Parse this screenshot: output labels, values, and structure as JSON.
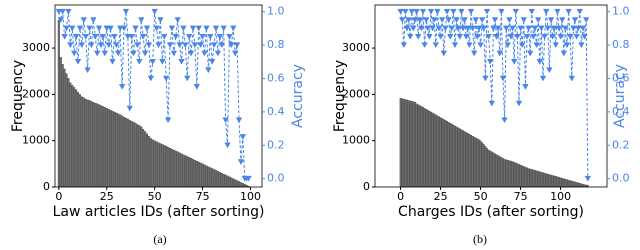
{
  "chart_data": [
    {
      "type": "bar",
      "xlabel": "Law articles IDs (after sorting)",
      "ylabel": "Frequency",
      "y2label": "Accuracy",
      "caption": "(a)",
      "x": [
        0,
        1,
        2,
        3,
        4,
        5,
        6,
        7,
        8,
        9,
        10,
        11,
        12,
        13,
        14,
        15,
        16,
        17,
        18,
        19,
        20,
        21,
        22,
        23,
        24,
        25,
        26,
        27,
        28,
        29,
        30,
        31,
        32,
        33,
        34,
        35,
        36,
        37,
        38,
        39,
        40,
        41,
        42,
        43,
        44,
        45,
        46,
        47,
        48,
        49,
        50,
        51,
        52,
        53,
        54,
        55,
        56,
        57,
        58,
        59,
        60,
        61,
        62,
        63,
        64,
        65,
        66,
        67,
        68,
        69,
        70,
        71,
        72,
        73,
        74,
        75,
        76,
        77,
        78,
        79,
        80,
        81,
        82,
        83,
        84,
        85,
        86,
        87,
        88,
        89,
        90,
        91,
        92,
        93,
        94,
        95,
        96,
        97,
        98,
        99
      ],
      "series": [
        {
          "type": "bar",
          "color": "#6e6e6e",
          "values": [
            3600,
            2800,
            2650,
            2550,
            2450,
            2350,
            2250,
            2200,
            2150,
            2100,
            2050,
            2000,
            1950,
            1930,
            1900,
            1880,
            1870,
            1850,
            1830,
            1810,
            1800,
            1780,
            1760,
            1740,
            1720,
            1700,
            1680,
            1660,
            1640,
            1620,
            1600,
            1580,
            1560,
            1540,
            1510,
            1490,
            1470,
            1440,
            1420,
            1400,
            1380,
            1350,
            1330,
            1300,
            1250,
            1200,
            1150,
            1100,
            1050,
            1020,
            1000,
            980,
            960,
            940,
            920,
            900,
            880,
            860,
            840,
            820,
            800,
            780,
            760,
            740,
            720,
            700,
            680,
            660,
            640,
            620,
            600,
            580,
            560,
            540,
            520,
            500,
            480,
            460,
            440,
            420,
            400,
            380,
            360,
            340,
            320,
            300,
            280,
            260,
            240,
            220,
            200,
            180,
            160,
            140,
            120,
            100,
            80,
            60,
            40,
            20
          ]
        },
        {
          "type": "line",
          "axis": "y2",
          "color": "#4a86e8",
          "values": [
            1.0,
            0.95,
            1.0,
            0.85,
            0.9,
            1.0,
            0.8,
            0.9,
            0.75,
            0.85,
            0.7,
            0.9,
            0.8,
            0.95,
            0.85,
            0.65,
            0.9,
            0.8,
            0.95,
            0.85,
            0.75,
            0.9,
            0.8,
            0.85,
            0.75,
            0.9,
            0.8,
            0.9,
            0.7,
            0.85,
            0.8,
            0.75,
            0.9,
            0.55,
            0.9,
            1.0,
            0.85,
            0.42,
            0.85,
            0.75,
            0.9,
            0.8,
            0.7,
            0.95,
            0.85,
            0.75,
            0.9,
            0.8,
            0.6,
            0.7,
            1.0,
            0.9,
            0.8,
            0.95,
            0.7,
            0.85,
            0.6,
            0.35,
            0.8,
            0.9,
            0.75,
            0.85,
            0.95,
            0.8,
            0.7,
            0.9,
            0.8,
            0.6,
            0.85,
            0.75,
            0.9,
            0.8,
            0.55,
            0.9,
            0.8,
            0.85,
            0.75,
            0.9,
            0.65,
            0.85,
            0.7,
            0.8,
            0.9,
            0.75,
            0.85,
            0.8,
            0.9,
            0.35,
            0.2,
            0.85,
            0.8,
            0.9,
            0.75,
            0.8,
            0.35,
            0.1,
            0.25,
            0.0,
            0.0,
            0.0
          ]
        }
      ],
      "xlim": [
        -2,
        106
      ],
      "xticks": [
        0,
        25,
        50,
        75,
        100
      ],
      "ylim": [
        0,
        3930
      ],
      "yticks": [
        0,
        1000,
        2000,
        3000
      ],
      "y2lim": [
        -0.05,
        1.04
      ],
      "y2ticks": [
        {
          "value": 0,
          "label": "0.0"
        },
        {
          "value": 0.2,
          "label": "0.2"
        },
        {
          "value": 0.4,
          "label": "0.4"
        },
        {
          "value": 0.6,
          "label": "0.6"
        },
        {
          "value": 0.8,
          "label": "0.8"
        },
        {
          "value": 1,
          "label": "1.0"
        }
      ]
    },
    {
      "type": "bar",
      "xlabel": "Charges IDs (after sorting)",
      "ylabel": "Frequency",
      "y2label": "Accuracy",
      "caption": "(b)",
      "x": [
        0,
        1,
        2,
        3,
        4,
        5,
        6,
        7,
        8,
        9,
        10,
        11,
        12,
        13,
        14,
        15,
        16,
        17,
        18,
        19,
        20,
        21,
        22,
        23,
        24,
        25,
        26,
        27,
        28,
        29,
        30,
        31,
        32,
        33,
        34,
        35,
        36,
        37,
        38,
        39,
        40,
        41,
        42,
        43,
        44,
        45,
        46,
        47,
        48,
        49,
        50,
        51,
        52,
        53,
        54,
        55,
        56,
        57,
        58,
        59,
        60,
        61,
        62,
        63,
        64,
        65,
        66,
        67,
        68,
        69,
        70,
        71,
        72,
        73,
        74,
        75,
        76,
        77,
        78,
        79,
        80,
        81,
        82,
        83,
        84,
        85,
        86,
        87,
        88,
        89,
        90,
        91,
        92,
        93,
        94,
        95,
        96,
        97,
        98,
        99,
        100,
        101,
        102,
        103,
        104,
        105,
        106,
        107,
        108,
        109,
        110,
        111,
        112,
        113,
        114,
        115,
        116,
        117
      ],
      "series": [
        {
          "type": "bar",
          "color": "#6e6e6e",
          "values": [
            1920,
            1910,
            1900,
            1890,
            1880,
            1870,
            1860,
            1850,
            1840,
            1830,
            1800,
            1780,
            1760,
            1740,
            1720,
            1700,
            1680,
            1660,
            1640,
            1620,
            1600,
            1580,
            1560,
            1540,
            1520,
            1500,
            1480,
            1460,
            1440,
            1420,
            1400,
            1380,
            1360,
            1340,
            1320,
            1300,
            1280,
            1260,
            1240,
            1220,
            1200,
            1180,
            1160,
            1140,
            1120,
            1100,
            1080,
            1060,
            1040,
            1020,
            1000,
            960,
            920,
            880,
            840,
            800,
            780,
            760,
            740,
            720,
            700,
            680,
            660,
            640,
            620,
            600,
            590,
            580,
            570,
            560,
            550,
            535,
            520,
            505,
            490,
            475,
            460,
            445,
            430,
            415,
            400,
            390,
            380,
            370,
            360,
            350,
            340,
            330,
            320,
            310,
            300,
            290,
            280,
            270,
            260,
            250,
            240,
            230,
            220,
            210,
            200,
            190,
            180,
            170,
            160,
            150,
            140,
            130,
            120,
            110,
            100,
            90,
            80,
            70,
            60,
            50,
            45,
            40
          ]
        },
        {
          "type": "line",
          "axis": "y2",
          "color": "#4a86e8",
          "values": [
            1.0,
            0.95,
            0.8,
            1.0,
            0.9,
            0.95,
            0.85,
            1.0,
            0.9,
            0.95,
            1.0,
            0.85,
            0.95,
            0.9,
            1.0,
            0.8,
            0.95,
            0.9,
            0.85,
            1.0,
            0.9,
            0.95,
            0.8,
            1.0,
            0.9,
            0.85,
            0.95,
            0.75,
            0.9,
            1.0,
            0.95,
            0.85,
            0.9,
            1.0,
            0.8,
            0.95,
            0.9,
            0.85,
            1.0,
            0.9,
            0.95,
            0.85,
            0.9,
            0.8,
            1.0,
            0.9,
            0.75,
            0.95,
            0.85,
            0.9,
            0.8,
            0.95,
            0.9,
            0.6,
            1.0,
            0.85,
            0.7,
            0.45,
            0.9,
            0.95,
            0.85,
            0.9,
            0.75,
            1.0,
            0.6,
            0.35,
            0.9,
            0.8,
            0.95,
            0.85,
            0.9,
            0.7,
            1.0,
            0.85,
            0.45,
            0.9,
            0.8,
            0.95,
            0.55,
            0.85,
            0.9,
            0.75,
            1.0,
            0.85,
            0.9,
            0.8,
            0.95,
            0.7,
            0.9,
            0.6,
            0.85,
            1.0,
            0.9,
            0.65,
            0.95,
            0.85,
            0.9,
            0.8,
            1.0,
            0.9,
            0.85,
            0.95,
            0.75,
            0.9,
            0.8,
            1.0,
            0.85,
            0.6,
            0.9,
            0.95,
            0.85,
            0.9,
            1.0,
            0.8,
            0.9,
            0.85,
            0.95,
            0.0
          ]
        }
      ],
      "xlim": [
        -16,
        129
      ],
      "xticks": [
        0,
        25,
        50,
        75,
        100
      ],
      "ylim": [
        0,
        3930
      ],
      "yticks": [
        0,
        1000,
        2000,
        3000
      ],
      "y2lim": [
        -0.05,
        1.04
      ],
      "y2ticks": [
        {
          "value": 0,
          "label": "0.0"
        },
        {
          "value": 0.2,
          "label": "0.2"
        },
        {
          "value": 0.4,
          "label": "0.4"
        },
        {
          "value": 0.6,
          "label": "0.6"
        },
        {
          "value": 0.8,
          "label": "0.8"
        },
        {
          "value": 1,
          "label": "1.0"
        }
      ]
    }
  ]
}
